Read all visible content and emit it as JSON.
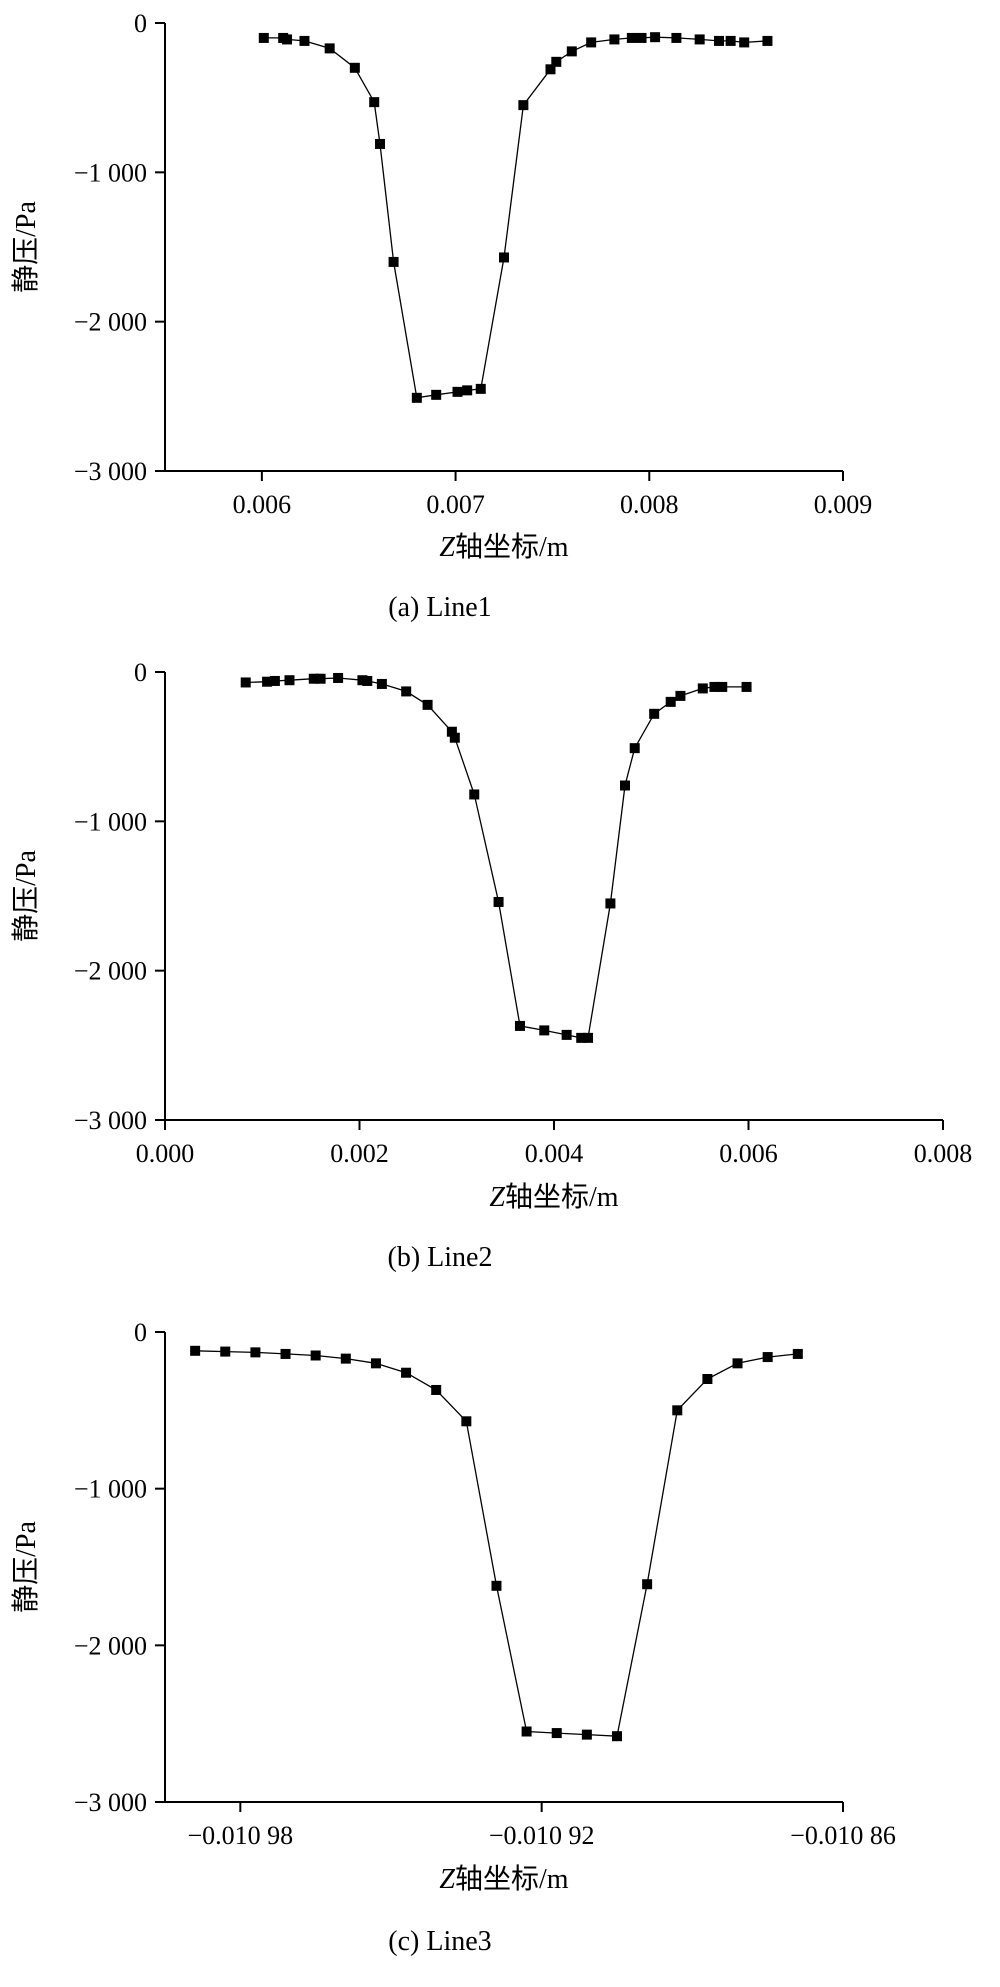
{
  "chart_data": [
    {
      "type": "line",
      "caption": "(a) Line1",
      "xlabel_italic": "Z",
      "xlabel_rest": "轴坐标/m",
      "ylabel": "静压/Pa",
      "xlim": [
        0.0055,
        0.009
      ],
      "ylim": [
        -3000,
        0
      ],
      "xticks": [
        0.006,
        0.007,
        0.008,
        0.009
      ],
      "xtick_labels": [
        "0.006",
        "0.007",
        "0.008",
        "0.009"
      ],
      "yticks": [
        0,
        -1000,
        -2000,
        -3000
      ],
      "ytick_labels": [
        "0",
        "−1 000",
        "−2 000",
        "−3 000"
      ],
      "grid": false,
      "series": [
        {
          "x": [
            0.00601,
            0.00611,
            0.00613,
            0.00622,
            0.00635,
            0.00648,
            0.00658,
            0.00661,
            0.00668,
            0.0068,
            0.0069,
            0.00701,
            0.00706,
            0.00713,
            0.00725,
            0.00735,
            0.00749,
            0.00752,
            0.0076,
            0.0077,
            0.00782,
            0.00791,
            0.00796,
            0.00803,
            0.00814,
            0.00826,
            0.00836,
            0.00842,
            0.00849,
            0.00861
          ],
          "y": [
            -100,
            -100,
            -110,
            -120,
            -170,
            -300,
            -530,
            -810,
            -1600,
            -2510,
            -2490,
            -2470,
            -2460,
            -2450,
            -1570,
            -550,
            -310,
            -260,
            -190,
            -130,
            -110,
            -100,
            -100,
            -95,
            -100,
            -110,
            -120,
            -120,
            -130,
            -120
          ]
        }
      ]
    },
    {
      "type": "line",
      "caption": "(b) Line2",
      "xlabel_italic": "Z",
      "xlabel_rest": "轴坐标/m",
      "ylabel": "静压/Pa",
      "xlim": [
        0.0,
        0.008
      ],
      "ylim": [
        -3000,
        0
      ],
      "xticks": [
        0.0,
        0.002,
        0.004,
        0.006,
        0.008
      ],
      "xtick_labels": [
        "0.000",
        "0.002",
        "0.004",
        "0.006",
        "0.008"
      ],
      "yticks": [
        0,
        -1000,
        -2000,
        -3000
      ],
      "ytick_labels": [
        "0",
        "−1 000",
        "−2 000",
        "−3 000"
      ],
      "grid": false,
      "series": [
        {
          "x": [
            0.00083,
            0.00105,
            0.00113,
            0.00128,
            0.00153,
            0.0016,
            0.00178,
            0.00203,
            0.00208,
            0.00223,
            0.00248,
            0.0027,
            0.00295,
            0.00298,
            0.00318,
            0.00343,
            0.00365,
            0.0039,
            0.00413,
            0.00428,
            0.00435,
            0.00458,
            0.00473,
            0.00483,
            0.00503,
            0.0052,
            0.0053,
            0.00553,
            0.00565,
            0.00573,
            0.00598
          ],
          "y": [
            -70,
            -65,
            -60,
            -55,
            -45,
            -45,
            -40,
            -55,
            -60,
            -80,
            -130,
            -220,
            -400,
            -440,
            -820,
            -1540,
            -2370,
            -2400,
            -2430,
            -2450,
            -2450,
            -1550,
            -760,
            -510,
            -280,
            -200,
            -160,
            -110,
            -100,
            -100,
            -100
          ]
        }
      ]
    },
    {
      "type": "line",
      "caption": "(c) Line3",
      "xlabel_italic": "Z",
      "xlabel_rest": "轴坐标/m",
      "ylabel": "静压/Pa",
      "xlim": [
        -0.010995,
        -0.01086
      ],
      "ylim": [
        -3000,
        0
      ],
      "xticks": [
        -0.01098,
        -0.01092,
        -0.01086
      ],
      "xtick_labels": [
        "−0.010 98",
        "−0.010 92",
        "−0.010 86"
      ],
      "yticks": [
        0,
        -1000,
        -2000,
        -3000
      ],
      "ytick_labels": [
        "0",
        "−1 000",
        "−2 000",
        "−3 000"
      ],
      "grid": false,
      "series": [
        {
          "x": [
            -0.010989,
            -0.010983,
            -0.010977,
            -0.010971,
            -0.010965,
            -0.010959,
            -0.010953,
            -0.010947,
            -0.010941,
            -0.010935,
            -0.010929,
            -0.010923,
            -0.010917,
            -0.010911,
            -0.010905,
            -0.010899,
            -0.010893,
            -0.010887,
            -0.010881,
            -0.010875,
            -0.010869
          ],
          "y": [
            -120,
            -125,
            -130,
            -140,
            -150,
            -170,
            -200,
            -260,
            -370,
            -570,
            -1620,
            -2550,
            -2560,
            -2570,
            -2580,
            -1610,
            -500,
            -300,
            -200,
            -160,
            -140
          ]
        }
      ]
    }
  ]
}
